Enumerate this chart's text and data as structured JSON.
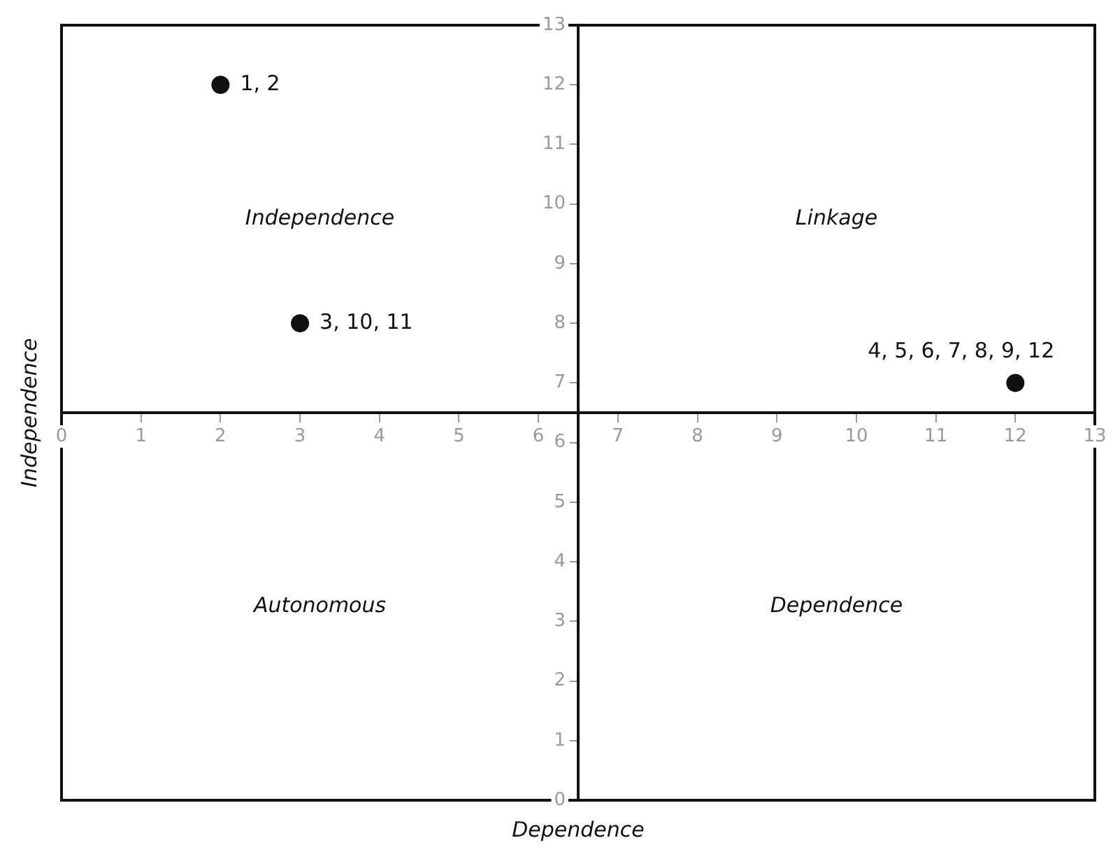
{
  "chart_data": {
    "type": "scatter",
    "xlabel": "Dependence",
    "ylabel": "Independence",
    "series": [
      {
        "color": "#111111",
        "x": [
          2,
          3,
          12
        ],
        "values": [
          12,
          8,
          7
        ]
      }
    ],
    "xlim": [
      0,
      13
    ],
    "ylim": [
      0,
      13
    ],
    "xticks": [
      0,
      1,
      2,
      3,
      4,
      5,
      6,
      7,
      8,
      9,
      10,
      11,
      12,
      13
    ],
    "yticks": [
      0,
      1,
      2,
      3,
      4,
      5,
      6,
      7,
      8,
      9,
      10,
      11,
      12,
      13
    ],
    "grid": false,
    "legend": false,
    "marker": "circle",
    "annotations": [
      {
        "text": "1, 2",
        "x": 2,
        "y": 12
      },
      {
        "text": "3, 10, 11",
        "x": 3,
        "y": 8
      },
      {
        "text": "4, 5, 6, 7, 8, 9, 12",
        "x": 12,
        "y": 7
      },
      "Independence",
      "Linkage",
      "Autonomous",
      "Dependence"
    ]
  }
}
